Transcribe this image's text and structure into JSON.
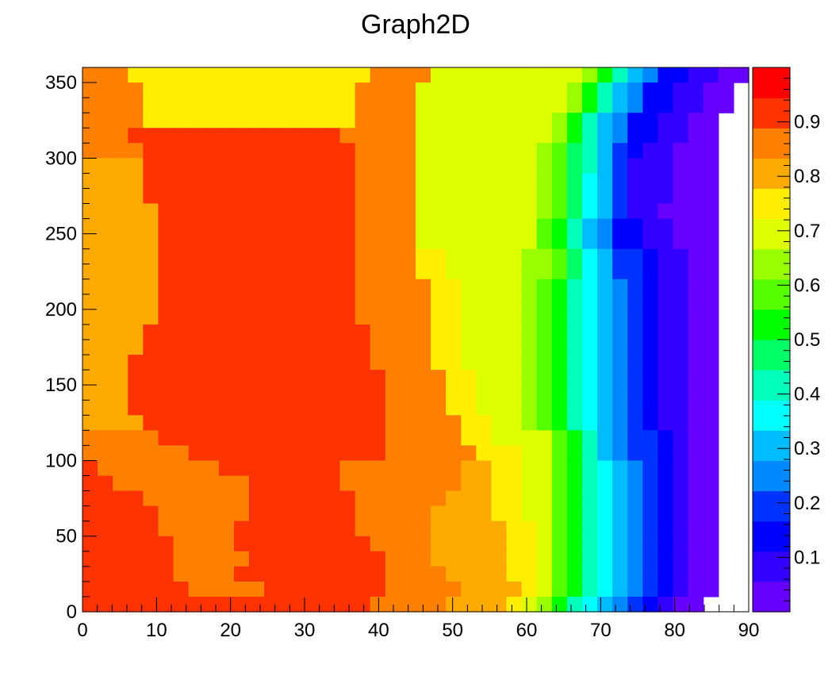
{
  "chart_data": {
    "type": "heatmap",
    "title": "Graph2D",
    "xlabel": "",
    "ylabel": "",
    "xlim": [
      0,
      90
    ],
    "ylim": [
      0,
      360
    ],
    "zlim": [
      0,
      1
    ],
    "x_ticks": [
      "0",
      "10",
      "20",
      "30",
      "40",
      "50",
      "60",
      "70",
      "80",
      "90"
    ],
    "y_ticks": [
      "0",
      "50",
      "100",
      "150",
      "200",
      "250",
      "300",
      "350"
    ],
    "z_ticks": [
      "0.1",
      "0.2",
      "0.3",
      "0.4",
      "0.5",
      "0.6",
      "0.7",
      "0.8",
      "0.9"
    ],
    "palette": [
      "#6600ff",
      "#3300ff",
      "#0000ff",
      "#0033ff",
      "#0088ff",
      "#00bbff",
      "#00ffff",
      "#00ffbb",
      "#00ff66",
      "#00ff00",
      "#55ff00",
      "#99ff00",
      "#ddff00",
      "#ffee00",
      "#ffaa00",
      "#ff8000",
      "#ff3300",
      "#ff0000"
    ],
    "columns": 44,
    "rows": 36,
    "grid": [
      "pppnnnnnnnnnnnnnnnnppppmmmmmmmmmmljhfeccbbaa",
      "ppppnnnnnnnnnnnnnnppppmmmmmmmmmmljhfeccbbaa",
      "ppppnnnnnnnnnnnnnnppppmmmmmmmmmmljhfeccbbaa",
      "ppppnnnnnnnnnnnnnnppppmmmmmmmmmljhfeccbbaa",
      "pppqqqqqqqqqqqqqqpppppmmmmmmmmmljhfeccbbaa",
      "ppppqqqqqqqqqqqqqqppppmmmmmmmmlkihfdcbbaaa",
      "ooooqqqqqqqqqqqqqqppppmmmmmmmmlkihfdbbbaaa",
      "ooooqqqqqqqqqqqqqqppppmmmmmmmmlkigfdbbbaaa",
      "ooooqqqqqqqqqqqqqqppppmmmmmmmmlkigfdbbbaaa",
      "oooooqqqqqqqqqqqqqppppmmmmmmmmlkigfdbbaaaa",
      "oooooqqqqqqqqqqqqqppppmmmmmmmmkjhfeccbbaaa",
      "oooooqqqqqqqqqqqqqppppmmmmmmmmkjhfeccbbaaa",
      "oooooqqqqqqqqqqqqqppppnnmmmmmllkigfddcbbaa",
      "oooooqqqqqqqqqqqqqppppnnmmmmmllkigfddcbbaa",
      "oooooqqqqqqqqqqqqqpppppnnmmmmlkjhgfedcbbaa",
      "oooooqqqqqqqqqqqqqpppppnnmmmmlkjhgfedcbbaa",
      "oooooqqqqqqqqqqqqqpppppnnmmmmlkjhgfedcbbaa",
      "ooooqqqqqqqqqqqqqqqppppnnmmmmlkjhgfedcbbaa",
      "ooooqqqqqqqqqqqqqqqppppnnmmmmlkjhgfedcbbaa",
      "oooqqqqqqqqqqqqqqqqppppnnmmmmlkjhgfedcbbaa",
      "oooqqqqqqqqqqqqqqqqqppppnnmmmlkjhgfedcbbaa",
      "oooqqqqqqqqqqqqqqqqqppppnnmmmlkjhgfedcbbaa",
      "oooqqqqqqqqqqqqqqqqqppppnnmmmlkjhgfedcbbaa",
      "ooooqqqqqqqqqqqqqqqqpppppnnmmlkjhgfedcbbaa",
      "pppppqqqqqqqqqqqqqqqpppppnnmmmmkjhfeddcbaa",
      "pppppppqqqqqqqqqqqqqppppppnnnmmkjhfeddcbaa",
      "qppppppppqqqqqqqqppppppppoonnmmkjhgfedcbaa",
      "qqpppppppppqqqqqqppppppppoonnmmkjhgfedcbaa",
      "qqqqpppppppqqqqqqqppppppooonnmmkjhgfedcbaa",
      "qqqqqppppppqqqqqqqpppppoooonnmmkjhgfedcbaa",
      "qqqqqpppppqqqqqqqqpppppooooonnmkjhgfedcbaa",
      "qqqqqqppppqqqqqqqqqppppooooonnmkjhgfedcbaa",
      "qqqqqqpppppqqqqqqqqqpppooooonnmkjhgfedcbaa",
      "qqqqqqppppqqqqqqqqqqppppoooonnmkjhgfedcbaa",
      "qqqqqqqpppppqqqqqqqqpppppoooonmkjhgfedcbaa",
      "qqqqqqqqqqqqqqqqqqqpppppoooonmljhgfedcbaa"
    ]
  }
}
